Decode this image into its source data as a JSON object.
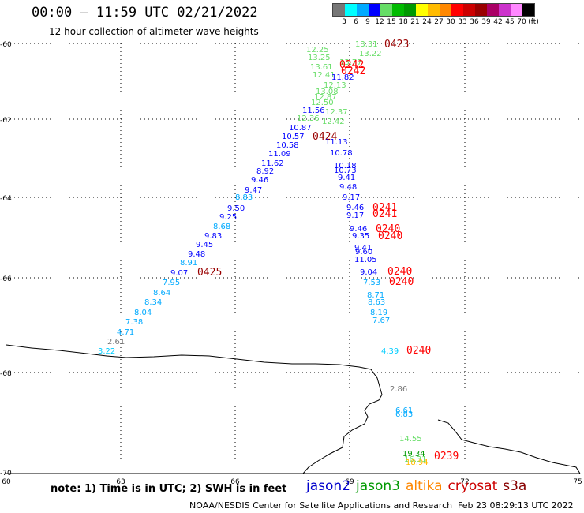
{
  "header": {
    "title": "00:00 – 11:59 UTC 02/21/2022",
    "subtitle": "12 hour collection of altimeter wave heights"
  },
  "legend": {
    "colors": [
      "#777777",
      "#00ffff",
      "#00aaff",
      "#0000ff",
      "#66dd66",
      "#00bb00",
      "#009900",
      "#ffff00",
      "#ffbb00",
      "#ff8800",
      "#ff0000",
      "#cc0000",
      "#990000",
      "#aa0066",
      "#cc33cc",
      "#ff88ff",
      "#000000"
    ],
    "labels": [
      "3",
      "6",
      "9",
      "12",
      "15",
      "18",
      "21",
      "24",
      "27",
      "30",
      "33",
      "36",
      "39",
      "42",
      "45",
      "70",
      "(ft)"
    ]
  },
  "axes": {
    "lat_labels": [
      "-60",
      "-62",
      "-64",
      "-66",
      "-68",
      "-70"
    ],
    "lon_labels": [
      "60",
      "63",
      "66",
      "69",
      "72",
      "75"
    ]
  },
  "observations": [
    {
      "text": "13.31",
      "color": "#66dd66"
    },
    {
      "text": "0423",
      "color": "#990000"
    },
    {
      "text": "12.25",
      "color": "#66dd66"
    },
    {
      "text": "13.22",
      "color": "#66dd66"
    },
    {
      "text": "13.25",
      "color": "#66dd66"
    },
    {
      "text": "13.77",
      "color": "#66dd66"
    },
    {
      "text": "0242",
      "color": "#ff0000"
    },
    {
      "text": "0242",
      "color": "#ff0000"
    },
    {
      "text": "13.61",
      "color": "#66dd66"
    },
    {
      "text": "12.41",
      "color": "#66dd66"
    },
    {
      "text": "11.82",
      "color": "#0000ff"
    },
    {
      "text": "12.13",
      "color": "#66dd66"
    },
    {
      "text": "13.08",
      "color": "#66dd66"
    },
    {
      "text": "12.87",
      "color": "#66dd66"
    },
    {
      "text": "12.50",
      "color": "#66dd66"
    },
    {
      "text": "11.56",
      "color": "#0000ff"
    },
    {
      "text": "12.37",
      "color": "#66dd66"
    },
    {
      "text": "12.36",
      "color": "#66dd66"
    },
    {
      "text": "12.42",
      "color": "#66dd66"
    },
    {
      "text": "10.87",
      "color": "#0000ff"
    },
    {
      "text": "10.57",
      "color": "#0000ff"
    },
    {
      "text": "0424",
      "color": "#990000"
    },
    {
      "text": "11.13",
      "color": "#0000ff"
    },
    {
      "text": "10.58",
      "color": "#0000ff"
    },
    {
      "text": "11.09",
      "color": "#0000ff"
    },
    {
      "text": "10.78",
      "color": "#0000ff"
    },
    {
      "text": "11.62",
      "color": "#0000ff"
    },
    {
      "text": "10.18",
      "color": "#0000ff"
    },
    {
      "text": "8.92",
      "color": "#0000ff"
    },
    {
      "text": "10.73",
      "color": "#0000ff"
    },
    {
      "text": "9.46",
      "color": "#0000ff"
    },
    {
      "text": "9.41",
      "color": "#0000ff"
    },
    {
      "text": "9.47",
      "color": "#0000ff"
    },
    {
      "text": "9.48",
      "color": "#0000ff"
    },
    {
      "text": "8.83",
      "color": "#00aaff"
    },
    {
      "text": "9.17",
      "color": "#0000ff"
    },
    {
      "text": "9.50",
      "color": "#0000ff"
    },
    {
      "text": "9.46",
      "color": "#0000ff"
    },
    {
      "text": "0241",
      "color": "#ff0000"
    },
    {
      "text": "9.25",
      "color": "#0000ff"
    },
    {
      "text": "9.17",
      "color": "#0000ff"
    },
    {
      "text": "0241",
      "color": "#ff0000"
    },
    {
      "text": "8.68",
      "color": "#00aaff"
    },
    {
      "text": "9.46",
      "color": "#0000ff"
    },
    {
      "text": "0240",
      "color": "#ff0000"
    },
    {
      "text": "9.83",
      "color": "#0000ff"
    },
    {
      "text": "9.35",
      "color": "#0000ff"
    },
    {
      "text": "0240",
      "color": "#ff0000"
    },
    {
      "text": "9.45",
      "color": "#0000ff"
    },
    {
      "text": "9.41",
      "color": "#0000ff"
    },
    {
      "text": "9.48",
      "color": "#0000ff"
    },
    {
      "text": "9.60",
      "color": "#0000ff"
    },
    {
      "text": "8.91",
      "color": "#00aaff"
    },
    {
      "text": "11.05",
      "color": "#0000ff"
    },
    {
      "text": "9.07",
      "color": "#0000ff"
    },
    {
      "text": "0425",
      "color": "#990000"
    },
    {
      "text": "9.04",
      "color": "#0000ff"
    },
    {
      "text": "0240",
      "color": "#ff0000"
    },
    {
      "text": "7.95",
      "color": "#00aaff"
    },
    {
      "text": "7.53",
      "color": "#00aaff"
    },
    {
      "text": "0240",
      "color": "#ff0000"
    },
    {
      "text": "8.64",
      "color": "#00aaff"
    },
    {
      "text": "8.71",
      "color": "#00aaff"
    },
    {
      "text": "8.34",
      "color": "#00aaff"
    },
    {
      "text": "8.63",
      "color": "#00aaff"
    },
    {
      "text": "8.04",
      "color": "#00aaff"
    },
    {
      "text": "8.19",
      "color": "#00aaff"
    },
    {
      "text": "7.38",
      "color": "#00aaff"
    },
    {
      "text": "7.67",
      "color": "#00aaff"
    },
    {
      "text": "4.71",
      "color": "#00aaff"
    },
    {
      "text": "2.61",
      "color": "#777777"
    },
    {
      "text": "3.22",
      "color": "#00ccff"
    },
    {
      "text": "4.39",
      "color": "#00ccff"
    },
    {
      "text": "0240",
      "color": "#ff0000"
    },
    {
      "text": "2.86",
      "color": "#777777"
    },
    {
      "text": "6.61",
      "color": "#00aaff"
    },
    {
      "text": "6.83",
      "color": "#00aaff"
    },
    {
      "text": "14.55",
      "color": "#66dd66"
    },
    {
      "text": "19.34",
      "color": "#009900"
    },
    {
      "text": "16.31",
      "color": "#66dd66"
    },
    {
      "text": "18.94",
      "color": "#ffbb00"
    },
    {
      "text": "0239",
      "color": "#ff0000"
    }
  ],
  "footer": {
    "note": "note: 1) Time is in UTC; 2) SWH is in feet",
    "satellites": [
      {
        "name": "jason2",
        "color": "#0000cc"
      },
      {
        "name": "jason3",
        "color": "#009900"
      },
      {
        "name": "altika",
        "color": "#ff8800"
      },
      {
        "name": "cryosat",
        "color": "#cc0000"
      },
      {
        "name": "s3a",
        "color": "#880000"
      }
    ],
    "credit": "NOAA/NESDIS Center for Satellite Applications and Research",
    "timestamp": "Feb 23 08:29:13 UTC 2022"
  }
}
